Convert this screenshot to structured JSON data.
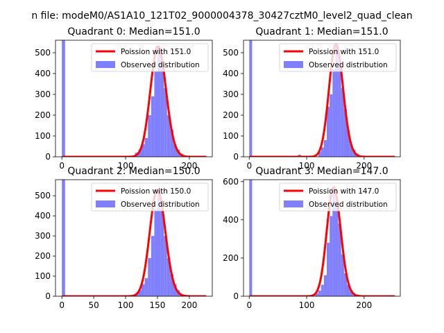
{
  "figure_title": "n file: modeM0/AS1A10_121T02_9000004378_30427cztM0_level2_quad_clean",
  "colors": {
    "poisson_line": "#ff0000",
    "observed_bars": "#8080ff",
    "axis": "#000000",
    "background": "#ffffff"
  },
  "chart_data": [
    {
      "type": "bar",
      "title": "Quadrant 0: Median=151.0",
      "xlim": [
        -10,
        236
      ],
      "ylim": [
        0,
        560
      ],
      "xticks": [
        0,
        100,
        200
      ],
      "yticks": [
        0,
        100,
        200,
        300,
        400,
        500
      ],
      "legend": {
        "placement": "top-right",
        "line_label": "Poission with 151.0",
        "bar_label": "Observed distribution"
      },
      "mean": 151.0,
      "bin_width": 5,
      "bins": [
        {
          "x": 0,
          "count": 560
        },
        {
          "x": 115,
          "count": 20
        },
        {
          "x": 120,
          "count": 35
        },
        {
          "x": 125,
          "count": 60
        },
        {
          "x": 130,
          "count": 90
        },
        {
          "x": 135,
          "count": 200
        },
        {
          "x": 140,
          "count": 290
        },
        {
          "x": 145,
          "count": 410
        },
        {
          "x": 150,
          "count": 530
        },
        {
          "x": 155,
          "count": 460
        },
        {
          "x": 160,
          "count": 330
        },
        {
          "x": 165,
          "count": 200
        },
        {
          "x": 170,
          "count": 130
        },
        {
          "x": 175,
          "count": 60
        },
        {
          "x": 180,
          "count": 35
        },
        {
          "x": 185,
          "count": 15
        }
      ]
    },
    {
      "type": "bar",
      "title": "Quadrant 1: Median=151.0",
      "xlim": [
        -10,
        263
      ],
      "ylim": [
        0,
        560
      ],
      "xticks": [
        0,
        100,
        200
      ],
      "yticks": [
        0,
        100,
        200,
        300,
        400,
        500
      ],
      "legend": {
        "placement": "top-right",
        "line_label": "Poission with 151.0",
        "bar_label": "Observed distribution"
      },
      "mean": 151.0,
      "bin_width": 5,
      "bins": [
        {
          "x": 0,
          "count": 560
        },
        {
          "x": 85,
          "count": 10
        },
        {
          "x": 90,
          "count": 5
        },
        {
          "x": 120,
          "count": 25
        },
        {
          "x": 125,
          "count": 45
        },
        {
          "x": 130,
          "count": 80
        },
        {
          "x": 135,
          "count": 240
        },
        {
          "x": 140,
          "count": 300
        },
        {
          "x": 145,
          "count": 420
        },
        {
          "x": 150,
          "count": 540
        },
        {
          "x": 155,
          "count": 450
        },
        {
          "x": 160,
          "count": 330
        },
        {
          "x": 165,
          "count": 230
        },
        {
          "x": 170,
          "count": 130
        },
        {
          "x": 175,
          "count": 60
        },
        {
          "x": 180,
          "count": 35
        },
        {
          "x": 185,
          "count": 15
        }
      ]
    },
    {
      "type": "bar",
      "title": "Quadrant 2: Median=150.0",
      "xlim": [
        -10,
        236
      ],
      "ylim": [
        0,
        580
      ],
      "xticks": [
        0,
        50,
        100,
        150,
        200
      ],
      "yticks": [
        0,
        100,
        200,
        300,
        400,
        500
      ],
      "legend": {
        "placement": "top-right",
        "line_label": "Poission with 150.0",
        "bar_label": "Observed distribution"
      },
      "mean": 150.0,
      "bin_width": 5,
      "bins": [
        {
          "x": 0,
          "count": 580
        },
        {
          "x": 115,
          "count": 15
        },
        {
          "x": 120,
          "count": 30
        },
        {
          "x": 125,
          "count": 60
        },
        {
          "x": 130,
          "count": 90
        },
        {
          "x": 135,
          "count": 190
        },
        {
          "x": 140,
          "count": 300
        },
        {
          "x": 145,
          "count": 430
        },
        {
          "x": 150,
          "count": 530
        },
        {
          "x": 155,
          "count": 430
        },
        {
          "x": 160,
          "count": 300
        },
        {
          "x": 165,
          "count": 190
        },
        {
          "x": 170,
          "count": 110
        },
        {
          "x": 175,
          "count": 60
        },
        {
          "x": 180,
          "count": 30
        },
        {
          "x": 185,
          "count": 10
        }
      ]
    },
    {
      "type": "bar",
      "title": "Quadrant 3: Median=147.0",
      "xlim": [
        -10,
        263
      ],
      "ylim": [
        0,
        610
      ],
      "xticks": [
        0,
        100,
        200
      ],
      "yticks": [
        0,
        200,
        400,
        600
      ],
      "legend": {
        "placement": "top-right",
        "line_label": "Poission with 147.0",
        "bar_label": "Observed distribution"
      },
      "mean": 147.0,
      "bin_width": 5,
      "bins": [
        {
          "x": 0,
          "count": 610
        },
        {
          "x": 115,
          "count": 15
        },
        {
          "x": 120,
          "count": 30
        },
        {
          "x": 125,
          "count": 60
        },
        {
          "x": 130,
          "count": 110
        },
        {
          "x": 135,
          "count": 280
        },
        {
          "x": 140,
          "count": 420
        },
        {
          "x": 145,
          "count": 570
        },
        {
          "x": 150,
          "count": 500
        },
        {
          "x": 155,
          "count": 380
        },
        {
          "x": 160,
          "count": 220
        },
        {
          "x": 165,
          "count": 120
        },
        {
          "x": 170,
          "count": 60
        },
        {
          "x": 175,
          "count": 30
        },
        {
          "x": 180,
          "count": 15
        }
      ]
    }
  ]
}
